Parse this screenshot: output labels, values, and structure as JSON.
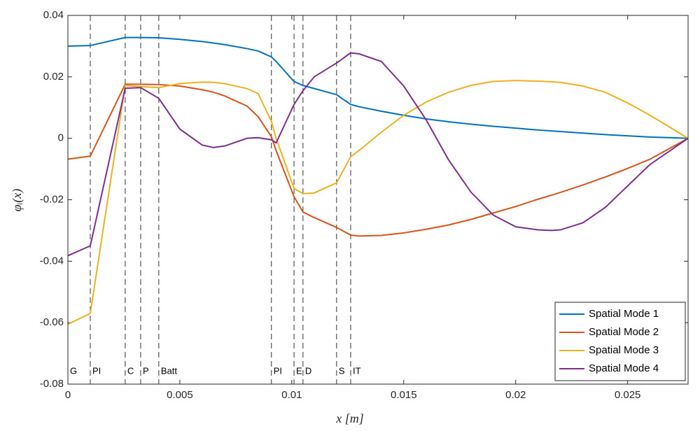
{
  "chart_data": {
    "type": "line",
    "xlabel": "x [m]",
    "ylabel": "φᵢ(x)",
    "x": [
      0,
      0.001,
      0.00256,
      0.00325,
      0.00406,
      0.005,
      0.006,
      0.0065,
      0.007,
      0.008,
      0.0085,
      0.00909,
      0.0093,
      0.0101,
      0.0105,
      0.011,
      0.012,
      0.01263,
      0.013,
      0.014,
      0.015,
      0.016,
      0.017,
      0.018,
      0.019,
      0.02,
      0.021,
      0.0216,
      0.022,
      0.023,
      0.024,
      0.025,
      0.026,
      0.0277
    ],
    "series": [
      {
        "name": "Spatial Mode 1",
        "color": "#0072bd",
        "values": [
          0.03,
          0.0302,
          0.0328,
          0.0328,
          0.0327,
          0.0322,
          0.0315,
          0.031,
          0.0305,
          0.0292,
          0.0284,
          0.0265,
          0.025,
          0.0185,
          0.0172,
          0.0162,
          0.0142,
          0.011,
          0.0103,
          0.0088,
          0.0075,
          0.0063,
          0.0054,
          0.0046,
          0.0039,
          0.0033,
          0.0027,
          0.0024,
          0.0022,
          0.0017,
          0.0012,
          0.0008,
          0.0004,
          0
        ]
      },
      {
        "name": "Spatial Mode 2",
        "color": "#d95319",
        "values": [
          -0.0068,
          -0.0058,
          0.0176,
          0.0176,
          0.0175,
          0.017,
          0.0158,
          0.015,
          0.0138,
          0.0105,
          0.007,
          0.0005,
          -0.004,
          -0.019,
          -0.024,
          -0.0258,
          -0.029,
          -0.0315,
          -0.0318,
          -0.0316,
          -0.0308,
          -0.0296,
          -0.0282,
          -0.0264,
          -0.0243,
          -0.0222,
          -0.0198,
          -0.0185,
          -0.0176,
          -0.0152,
          -0.0126,
          -0.0098,
          -0.0068,
          0
        ]
      },
      {
        "name": "Spatial Mode 3",
        "color": "#edb120",
        "values": [
          -0.0605,
          -0.057,
          0.0172,
          0.0168,
          0.0165,
          0.0178,
          0.0183,
          0.0182,
          0.0178,
          0.0162,
          0.0145,
          0.0055,
          0.0,
          -0.0163,
          -0.018,
          -0.0178,
          -0.0145,
          -0.006,
          -0.004,
          0.002,
          0.0075,
          0.0118,
          0.015,
          0.0172,
          0.0185,
          0.0188,
          0.0186,
          0.0184,
          0.0182,
          0.017,
          0.015,
          0.0115,
          0.0075,
          0
        ]
      },
      {
        "name": "Spatial Mode 4",
        "color": "#7e2f8e",
        "values": [
          -0.0382,
          -0.035,
          0.0163,
          0.0165,
          0.013,
          0.003,
          -0.0022,
          -0.003,
          -0.0025,
          0.0,
          0.0002,
          -0.0005,
          -0.0015,
          0.011,
          0.0155,
          0.02,
          0.0245,
          0.0278,
          0.0275,
          0.025,
          0.017,
          0.006,
          -0.007,
          -0.0175,
          -0.025,
          -0.0288,
          -0.0298,
          -0.03,
          -0.0298,
          -0.0275,
          -0.0225,
          -0.0155,
          -0.0085,
          0
        ]
      }
    ],
    "sections": [
      {
        "x": 0,
        "label": "G"
      },
      {
        "x": 0.001,
        "label": "PI"
      },
      {
        "x": 0.00256,
        "label": "C"
      },
      {
        "x": 0.00325,
        "label": "P"
      },
      {
        "x": 0.00406,
        "label": "Batt"
      },
      {
        "x": 0.00909,
        "label": "PI"
      },
      {
        "x": 0.0101,
        "label": "E"
      },
      {
        "x": 0.0105,
        "label": "D"
      },
      {
        "x": 0.012,
        "label": "S"
      },
      {
        "x": 0.01263,
        "label": "IT"
      }
    ],
    "xlim": [
      0,
      0.0277
    ],
    "ylim": [
      -0.08,
      0.04
    ],
    "xticks": [
      0,
      0.005,
      0.01,
      0.015,
      0.02,
      0.025
    ],
    "yticks": [
      -0.08,
      -0.06,
      -0.04,
      -0.02,
      0,
      0.02,
      0.04
    ],
    "legend": "lower right"
  }
}
